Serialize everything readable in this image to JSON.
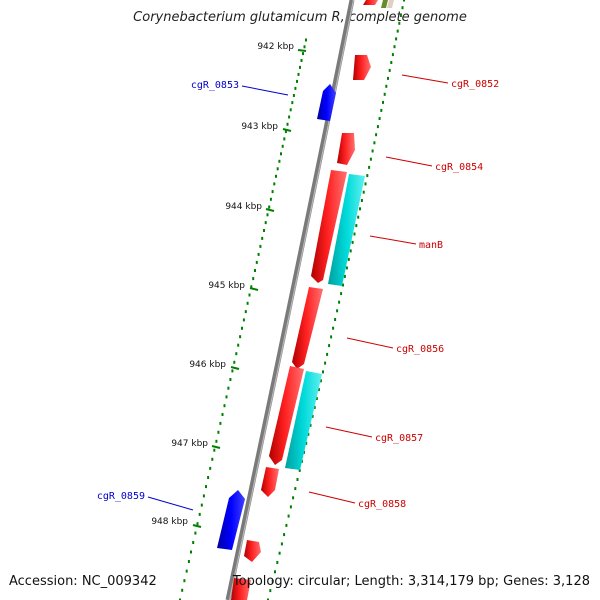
{
  "title": "Corynebacterium glutamicum R, complete genome",
  "footer": {
    "accession": "Accession: NC_009342",
    "topology": "Topology: circular; Length: 3,314,179 bp; Genes: 3,128"
  },
  "colors": {
    "backbone": "#808080",
    "gene_forward": "#ff0000",
    "gene_reverse": "#0000ff",
    "rna": "#00cccc",
    "tick": "#008000",
    "label_forward": "#cc0000",
    "label_reverse": "#0000cc"
  },
  "ticks": [
    "942 kbp",
    "943 kbp",
    "944 kbp",
    "945 kbp",
    "946 kbp",
    "947 kbp",
    "948 kbp"
  ],
  "genes": [
    {
      "name": "cgR_0852",
      "strand": "forward"
    },
    {
      "name": "cgR_0853",
      "strand": "reverse"
    },
    {
      "name": "cgR_0854",
      "strand": "forward"
    },
    {
      "name": "manB",
      "strand": "forward"
    },
    {
      "name": "cgR_0856",
      "strand": "forward"
    },
    {
      "name": "cgR_0857",
      "strand": "forward"
    },
    {
      "name": "cgR_0858",
      "strand": "forward"
    },
    {
      "name": "cgR_0859",
      "strand": "reverse"
    }
  ]
}
